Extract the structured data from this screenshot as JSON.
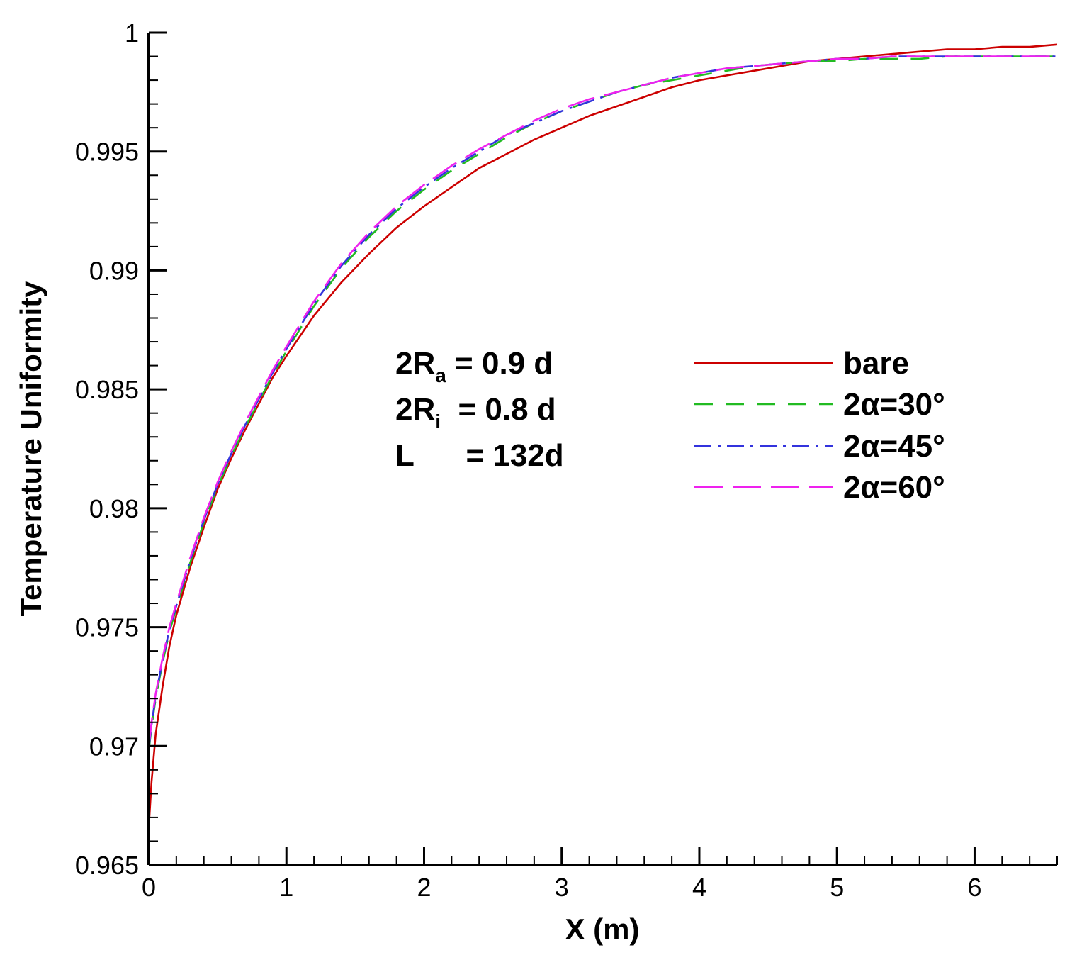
{
  "chart_data": {
    "type": "line",
    "title": "",
    "xlabel": "X (m)",
    "ylabel": "Temperature Uniformity",
    "xlim": [
      0,
      6.6
    ],
    "ylim": [
      0.965,
      1.0
    ],
    "xticks": [
      "0",
      "1",
      "2",
      "3",
      "4",
      "5",
      "6"
    ],
    "yticks": [
      "0.965",
      "0.97",
      "0.975",
      "0.98",
      "0.985",
      "0.99",
      "0.995",
      "1"
    ],
    "grid": false,
    "legend_position": "center-right",
    "annotations": [
      {
        "main": "2R",
        "sub": "a",
        "rest": " = 0.9 d"
      },
      {
        "main": "2R",
        "sub": "i",
        "rest": "  = 0.8 d"
      },
      {
        "main": "L",
        "sub": "",
        "rest": "      = 132d"
      }
    ],
    "series": [
      {
        "name": "bare",
        "color": "#cc0000",
        "dash": "solid",
        "x": [
          0.0,
          0.02,
          0.05,
          0.1,
          0.15,
          0.2,
          0.3,
          0.4,
          0.5,
          0.6,
          0.7,
          0.8,
          0.9,
          1.0,
          1.2,
          1.4,
          1.6,
          1.8,
          2.0,
          2.2,
          2.4,
          2.6,
          2.8,
          3.0,
          3.2,
          3.4,
          3.6,
          3.8,
          4.0,
          4.2,
          4.4,
          4.6,
          4.8,
          5.0,
          5.2,
          5.4,
          5.6,
          5.8,
          6.0,
          6.2,
          6.4,
          6.6
        ],
        "y": [
          0.9666,
          0.9685,
          0.9705,
          0.9725,
          0.9742,
          0.9755,
          0.9775,
          0.9792,
          0.9808,
          0.9821,
          0.9833,
          0.9844,
          0.9855,
          0.9864,
          0.9881,
          0.9895,
          0.9907,
          0.9918,
          0.9927,
          0.9935,
          0.9943,
          0.9949,
          0.9955,
          0.996,
          0.9965,
          0.9969,
          0.9973,
          0.9977,
          0.998,
          0.9982,
          0.9984,
          0.9986,
          0.9988,
          0.9989,
          0.999,
          0.9991,
          0.9992,
          0.9993,
          0.9993,
          0.9994,
          0.9994,
          0.9995
        ]
      },
      {
        "name": "2α=30°",
        "color": "#22bb22",
        "dash": "26 18",
        "x": [
          0.0,
          0.02,
          0.05,
          0.1,
          0.15,
          0.2,
          0.3,
          0.4,
          0.5,
          0.6,
          0.7,
          0.8,
          0.9,
          1.0,
          1.2,
          1.4,
          1.6,
          1.8,
          2.0,
          2.2,
          2.4,
          2.6,
          2.8,
          3.0,
          3.2,
          3.4,
          3.6,
          3.8,
          4.0,
          4.2,
          4.4,
          4.6,
          4.8,
          5.0,
          5.2,
          5.4,
          5.6,
          5.8,
          6.0,
          6.2,
          6.4,
          6.6
        ],
        "y": [
          0.9698,
          0.9708,
          0.972,
          0.9735,
          0.9748,
          0.9758,
          0.9777,
          0.9794,
          0.9809,
          0.9822,
          0.9834,
          0.9845,
          0.9856,
          0.9866,
          0.9885,
          0.9901,
          0.9914,
          0.9925,
          0.9934,
          0.9942,
          0.9949,
          0.9956,
          0.9962,
          0.9967,
          0.9971,
          0.9975,
          0.9978,
          0.998,
          0.9982,
          0.9984,
          0.9986,
          0.9987,
          0.9988,
          0.9988,
          0.9989,
          0.9989,
          0.9989,
          0.999,
          0.999,
          0.999,
          0.999,
          0.999
        ]
      },
      {
        "name": "2α=45°",
        "color": "#3333dd",
        "dash": "24 9 4 9",
        "x": [
          0.0,
          0.02,
          0.05,
          0.1,
          0.15,
          0.2,
          0.3,
          0.4,
          0.5,
          0.6,
          0.7,
          0.8,
          0.9,
          1.0,
          1.2,
          1.4,
          1.6,
          1.8,
          2.0,
          2.2,
          2.4,
          2.6,
          2.8,
          3.0,
          3.2,
          3.4,
          3.6,
          3.8,
          4.0,
          4.2,
          4.4,
          4.6,
          4.8,
          5.0,
          5.2,
          5.4,
          5.6,
          5.8,
          6.0,
          6.2,
          6.4,
          6.6
        ],
        "y": [
          0.9699,
          0.9709,
          0.9721,
          0.9736,
          0.9749,
          0.9759,
          0.9778,
          0.9795,
          0.981,
          0.9823,
          0.9835,
          0.9846,
          0.9857,
          0.9867,
          0.9886,
          0.9902,
          0.9915,
          0.9926,
          0.9935,
          0.9943,
          0.995,
          0.9957,
          0.9962,
          0.9967,
          0.9971,
          0.9975,
          0.9978,
          0.9981,
          0.9983,
          0.9985,
          0.9986,
          0.9987,
          0.9988,
          0.9989,
          0.9989,
          0.999,
          0.999,
          0.999,
          0.999,
          0.999,
          0.999,
          0.999
        ]
      },
      {
        "name": "2α=60°",
        "color": "#ee22ee",
        "dash": "40 14",
        "x": [
          0.0,
          0.02,
          0.05,
          0.1,
          0.15,
          0.2,
          0.3,
          0.4,
          0.5,
          0.6,
          0.7,
          0.8,
          0.9,
          1.0,
          1.2,
          1.4,
          1.6,
          1.8,
          2.0,
          2.2,
          2.4,
          2.6,
          2.8,
          3.0,
          3.2,
          3.4,
          3.6,
          3.8,
          4.0,
          4.2,
          4.4,
          4.6,
          4.8,
          5.0,
          5.2,
          5.4,
          5.6,
          5.8,
          6.0,
          6.2,
          6.4,
          6.6
        ],
        "y": [
          0.97,
          0.971,
          0.9722,
          0.9737,
          0.975,
          0.976,
          0.9779,
          0.9796,
          0.9811,
          0.9824,
          0.9836,
          0.9847,
          0.9858,
          0.9868,
          0.9887,
          0.9903,
          0.9916,
          0.9927,
          0.9936,
          0.9944,
          0.9951,
          0.9957,
          0.9963,
          0.9968,
          0.9972,
          0.9975,
          0.9978,
          0.9981,
          0.9983,
          0.9985,
          0.9986,
          0.9987,
          0.9988,
          0.9989,
          0.9989,
          0.999,
          0.999,
          0.999,
          0.999,
          0.999,
          0.999,
          0.999
        ]
      }
    ]
  }
}
